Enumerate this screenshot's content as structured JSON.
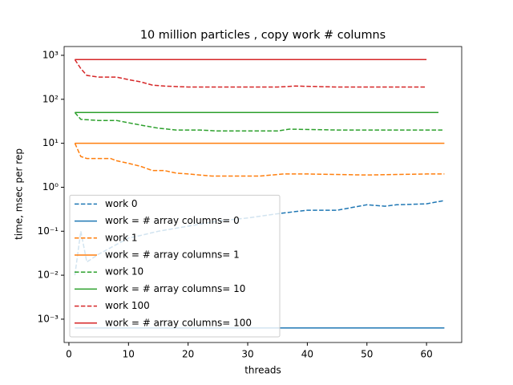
{
  "chart_data": {
    "type": "line",
    "title": "10 million particles , copy work # columns",
    "xlabel": "threads",
    "ylabel": "time, msec per rep",
    "xlim": [
      -0.8,
      65.9
    ],
    "ylim": [
      0.000295,
      1585
    ],
    "log_y": true,
    "legend": "lower left",
    "xticks": [
      0,
      10,
      20,
      30,
      40,
      50,
      60
    ],
    "yticks": [
      {
        "value": 0.001,
        "label": "10⁻³"
      },
      {
        "value": 0.01,
        "label": "10⁻²"
      },
      {
        "value": 0.1,
        "label": "10⁻¹"
      },
      {
        "value": 1,
        "label": "10⁰"
      },
      {
        "value": 10,
        "label": "10¹"
      },
      {
        "value": 100,
        "label": "10²"
      },
      {
        "value": 1000,
        "label": "10³"
      }
    ],
    "series": [
      {
        "name": "work 0",
        "color": "#1f77b4",
        "dash": true,
        "x": [
          1,
          2,
          3,
          5,
          8,
          10,
          12,
          15,
          20,
          25,
          30,
          35,
          38,
          40,
          45,
          50,
          53,
          55,
          60,
          63
        ],
        "values": [
          0.01,
          0.1,
          0.02,
          0.03,
          0.05,
          0.07,
          0.08,
          0.1,
          0.13,
          0.17,
          0.2,
          0.25,
          0.28,
          0.3,
          0.3,
          0.4,
          0.37,
          0.4,
          0.42,
          0.5
        ]
      },
      {
        "name": "work = # array columns= 0",
        "color": "#1f77b4",
        "dash": false,
        "x": [
          1,
          63
        ],
        "values": [
          0.00063,
          0.00063
        ]
      },
      {
        "name": "work 1",
        "color": "#ff7f0e",
        "dash": true,
        "x": [
          1,
          2,
          3,
          7,
          8,
          10,
          12,
          14,
          16,
          18,
          20,
          24,
          32,
          36,
          40,
          50,
          60,
          63
        ],
        "values": [
          10,
          5,
          4.5,
          4.5,
          4,
          3.5,
          3,
          2.4,
          2.4,
          2.1,
          2,
          1.8,
          1.8,
          2,
          2,
          1.9,
          2,
          2
        ]
      },
      {
        "name": "work = # array columns= 1",
        "color": "#ff7f0e",
        "dash": false,
        "x": [
          1,
          63
        ],
        "values": [
          10,
          10
        ]
      },
      {
        "name": "work 10",
        "color": "#2ca02c",
        "dash": true,
        "x": [
          1,
          2,
          5,
          8,
          12,
          15,
          18,
          22,
          25,
          35,
          37,
          45,
          63
        ],
        "values": [
          50,
          35,
          33,
          33,
          26,
          22,
          20,
          20,
          19,
          19,
          21,
          20,
          20
        ]
      },
      {
        "name": "work = # array columns= 10",
        "color": "#2ca02c",
        "dash": false,
        "x": [
          1,
          62
        ],
        "values": [
          50,
          50
        ]
      },
      {
        "name": "work 100",
        "color": "#d62728",
        "dash": true,
        "x": [
          1,
          2,
          3,
          5,
          8,
          10,
          12,
          14,
          16,
          20,
          35,
          38,
          45,
          60
        ],
        "values": [
          800,
          500,
          350,
          320,
          320,
          280,
          250,
          210,
          200,
          190,
          190,
          200,
          190,
          190
        ]
      },
      {
        "name": "work = # array columns= 100",
        "color": "#d62728",
        "dash": false,
        "x": [
          1,
          60
        ],
        "values": [
          800,
          800
        ]
      }
    ]
  }
}
